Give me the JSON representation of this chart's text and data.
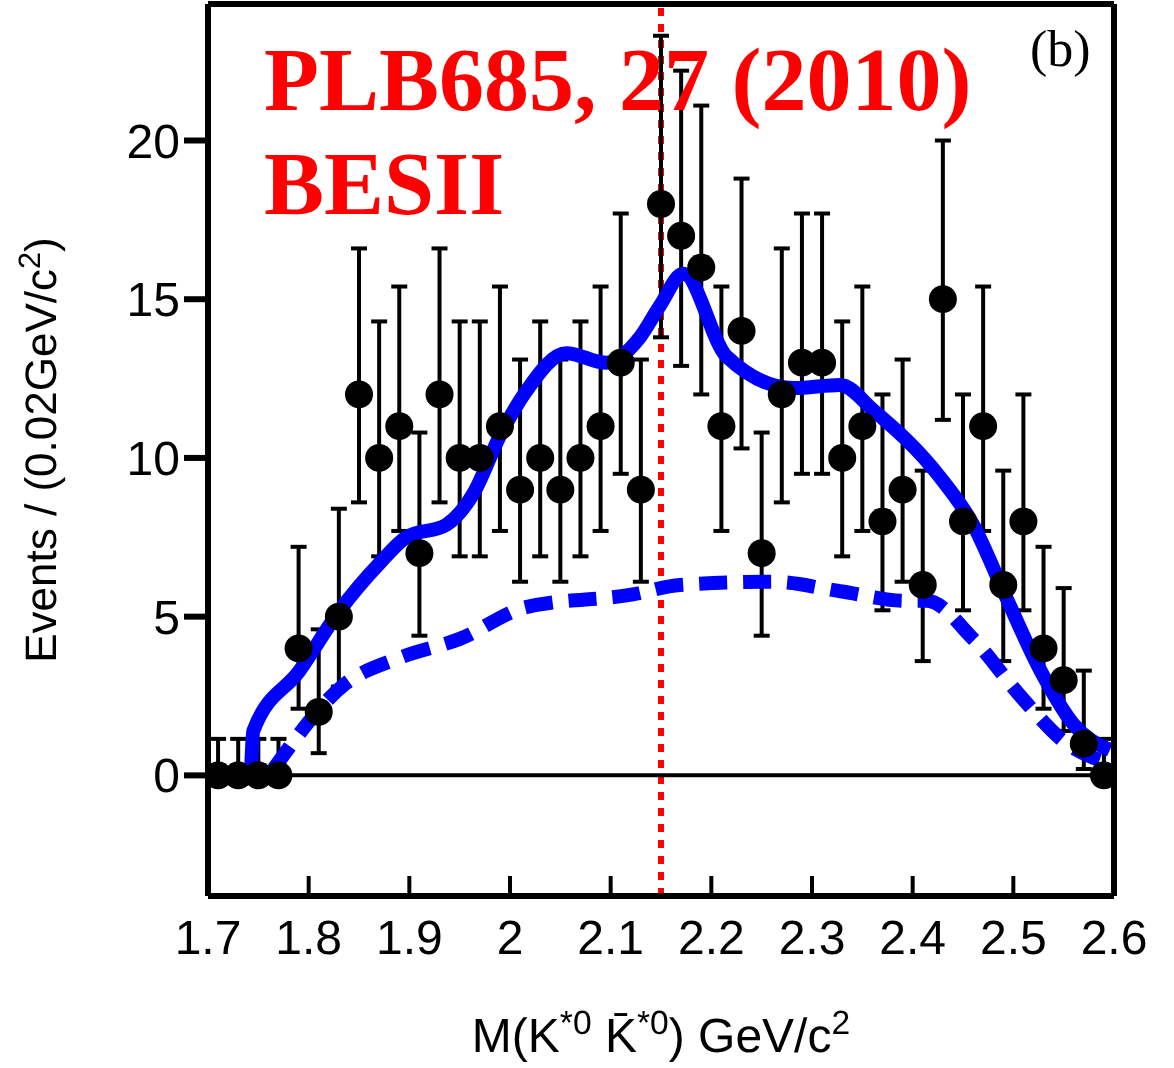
{
  "chart_data": {
    "type": "scatter",
    "xlabel": "M(K$^{*0}$ K̄$^{*0}$) GeV/c$^{2}$",
    "ylabel": "Events / (0.02GeV/c$^{2}$)",
    "annotations": [
      "PLB685, 27 (2010)",
      "BESII",
      "(b)"
    ],
    "xlim": [
      1.7,
      2.6
    ],
    "xticks": [
      1.7,
      1.8,
      1.9,
      2.0,
      2.1,
      2.2,
      2.3,
      2.4,
      2.5,
      2.6
    ],
    "ylim": [
      -3.8,
      24.3
    ],
    "yticks": [
      0,
      5,
      10,
      15,
      20
    ],
    "grid": false,
    "legend": false,
    "marker": "circle",
    "ref_lines": [
      {
        "axis": "x",
        "value": 2.15,
        "label": null,
        "color": "#ff0000",
        "line_style": "dotted"
      },
      {
        "axis": "y",
        "value": 0,
        "label": null,
        "color": "#000000",
        "line_style": "solid"
      }
    ],
    "series": [
      {
        "color": "#000000",
        "x": [
          1.71,
          1.73,
          1.75,
          1.77,
          1.79,
          1.81,
          1.83,
          1.85,
          1.87,
          1.89,
          1.91,
          1.93,
          1.95,
          1.97,
          1.99,
          2.01,
          2.03,
          2.05,
          2.07,
          2.09,
          2.11,
          2.13,
          2.15,
          2.17,
          2.19,
          2.21,
          2.23,
          2.25,
          2.27,
          2.29,
          2.31,
          2.33,
          2.35,
          2.37,
          2.39,
          2.41,
          2.43,
          2.45,
          2.47,
          2.49,
          2.51,
          2.53,
          2.55,
          2.57,
          2.59
        ],
        "values": [
          0,
          0,
          0,
          0,
          4,
          2,
          5,
          12,
          10,
          11,
          7,
          12,
          10,
          10,
          11,
          9,
          10,
          9,
          10,
          11,
          13,
          9,
          18,
          17,
          16,
          11,
          14,
          7,
          12,
          13,
          13,
          10,
          11,
          8,
          9,
          6,
          15,
          8,
          11,
          6,
          8,
          4,
          3,
          1,
          0
        ],
        "errors": [
          [
            0,
            1.15
          ],
          [
            0,
            1.15
          ],
          [
            0,
            1.15
          ],
          [
            0,
            1.15
          ],
          [
            2.1,
            7.2
          ],
          [
            0.7,
            4.6
          ],
          [
            2.8,
            8.4
          ],
          [
            8.6,
            16.6
          ],
          [
            6.9,
            14.3
          ],
          [
            7.7,
            15.4
          ],
          [
            4.4,
            10.8
          ],
          [
            8.6,
            16.6
          ],
          [
            6.9,
            14.3
          ],
          [
            6.9,
            14.3
          ],
          [
            7.7,
            15.4
          ],
          [
            6.1,
            13.1
          ],
          [
            6.9,
            14.3
          ],
          [
            6.1,
            13.1
          ],
          [
            6.9,
            14.3
          ],
          [
            7.7,
            15.4
          ],
          [
            9.5,
            17.7
          ],
          [
            6.1,
            13.1
          ],
          [
            13.8,
            23.3
          ],
          [
            12.9,
            22.2
          ],
          [
            12.0,
            21.1
          ],
          [
            7.7,
            15.4
          ],
          [
            10.3,
            18.8
          ],
          [
            4.4,
            10.8
          ],
          [
            8.6,
            16.6
          ],
          [
            9.5,
            17.7
          ],
          [
            9.5,
            17.7
          ],
          [
            6.9,
            14.3
          ],
          [
            7.7,
            15.4
          ],
          [
            5.2,
            12.0
          ],
          [
            6.1,
            13.1
          ],
          [
            3.6,
            9.6
          ],
          [
            11.2,
            20.0
          ],
          [
            5.2,
            12.0
          ],
          [
            7.7,
            15.4
          ],
          [
            3.6,
            9.6
          ],
          [
            5.2,
            12.0
          ],
          [
            2.1,
            7.2
          ],
          [
            1.4,
            5.9
          ],
          [
            0.2,
            3.3
          ],
          [
            0,
            1.15
          ]
        ]
      },
      {
        "type": "line",
        "color": "#0000ff",
        "line_style": "solid",
        "marker": "none",
        "x": [
          1.7,
          1.742,
          1.745,
          1.791,
          1.831,
          1.871,
          1.897,
          1.937,
          1.964,
          1.99,
          2.016,
          2.056,
          2.095,
          2.129,
          2.149,
          2.172,
          2.215,
          2.282,
          2.328,
          2.361,
          2.427,
          2.46,
          2.493,
          2.527,
          2.56,
          2.596
        ],
        "values": [
          0,
          0,
          1.4,
          3.3,
          5.2,
          6.7,
          7.5,
          7.9,
          8.9,
          10.7,
          12.1,
          13.3,
          13.0,
          13.8,
          14.8,
          15.8,
          13.2,
          12.2,
          12.3,
          11.5,
          9.4,
          7.9,
          5.6,
          3.3,
          1.6,
          0.8
        ]
      },
      {
        "type": "line",
        "color": "#0000ff",
        "line_style": "dashed",
        "marker": "none",
        "x": [
          1.765,
          1.837,
          1.89,
          1.95,
          2.016,
          2.122,
          2.169,
          2.262,
          2.328,
          2.394,
          2.414,
          2.46,
          2.507,
          2.553,
          2.593
        ],
        "values": [
          0.2,
          2.9,
          3.7,
          4.3,
          5.3,
          5.7,
          6.0,
          6.1,
          5.8,
          5.5,
          5.5,
          4.3,
          2.5,
          1.0,
          0.4
        ]
      }
    ]
  }
}
